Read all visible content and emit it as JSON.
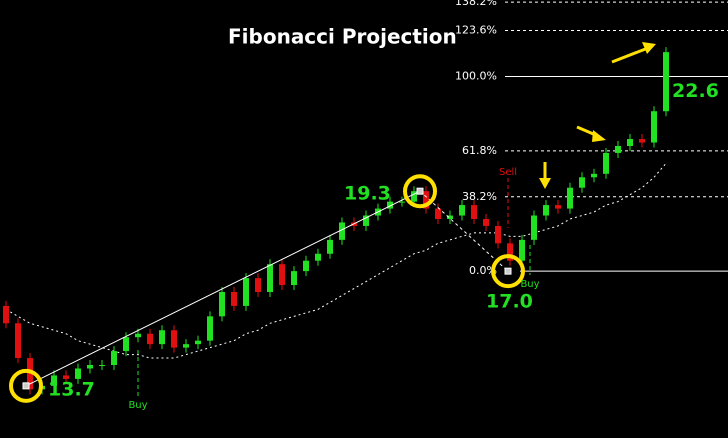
{
  "chart_data": {
    "type": "candlestick",
    "title": "Fibonacci Projection",
    "ylim": [
      12.2,
      24.8
    ],
    "open": [
      16.0,
      15.5,
      14.5,
      13.6,
      13.7,
      14.0,
      13.9,
      14.2,
      14.3,
      14.3,
      14.7,
      15.1,
      15.2,
      14.9,
      15.3,
      14.8,
      14.9,
      15.0,
      15.7,
      16.4,
      16.0,
      16.8,
      16.4,
      17.2,
      16.6,
      17.0,
      17.3,
      17.5,
      17.9,
      18.4,
      18.3,
      18.6,
      18.8,
      19.0,
      19.0,
      19.3,
      18.8,
      18.5,
      18.6,
      18.9,
      18.5,
      18.3,
      17.8,
      17.3,
      17.9,
      18.6,
      18.9,
      18.8,
      19.4,
      19.7,
      19.8,
      20.4,
      20.6,
      20.8,
      20.7,
      21.6
    ],
    "close": [
      15.5,
      14.5,
      13.6,
      13.7,
      14.0,
      13.9,
      14.2,
      14.3,
      14.3,
      14.7,
      15.1,
      15.2,
      14.9,
      15.3,
      14.8,
      14.9,
      15.0,
      15.7,
      16.4,
      16.0,
      16.8,
      16.4,
      17.2,
      16.6,
      17.0,
      17.3,
      17.5,
      17.9,
      18.4,
      18.3,
      18.6,
      18.8,
      19.0,
      19.0,
      19.3,
      18.8,
      18.5,
      18.6,
      18.9,
      18.5,
      18.3,
      17.8,
      17.3,
      17.9,
      18.6,
      18.9,
      18.8,
      19.4,
      19.7,
      19.8,
      20.4,
      20.6,
      20.8,
      20.7,
      21.6,
      23.3
    ],
    "up_color": "#22e022",
    "down_color": "#e01010",
    "moving_average": [
      15.9,
      15.7,
      15.5,
      15.4,
      15.3,
      15.2,
      15.0,
      14.9,
      14.8,
      14.7,
      14.6,
      14.6,
      14.5,
      14.5,
      14.5,
      14.6,
      14.7,
      14.8,
      14.9,
      15.0,
      15.2,
      15.3,
      15.5,
      15.6,
      15.7,
      15.8,
      15.9,
      16.1,
      16.3,
      16.5,
      16.7,
      16.9,
      17.1,
      17.3,
      17.5,
      17.6,
      17.8,
      17.9,
      18.0,
      18.1,
      18.1,
      18.1,
      18.0,
      18.0,
      18.1,
      18.2,
      18.3,
      18.5,
      18.6,
      18.7,
      18.9,
      19.0,
      19.2,
      19.4,
      19.7,
      20.1
    ],
    "points": {
      "values": [
        13.7,
        19.3,
        17.0,
        22.6
      ],
      "value_labels": [
        "13.7",
        "19.3",
        "17.0",
        "22.6"
      ]
    },
    "fib_levels": [
      {
        "value": 138.2,
        "label": "138.2%"
      },
      {
        "value": 123.6,
        "label": "123.6%"
      },
      {
        "value": 100.0,
        "label": "100.0%"
      },
      {
        "value": 61.8,
        "label": "61.8%"
      },
      {
        "value": 38.2,
        "label": "38.2%"
      },
      {
        "value": 0.0,
        "label": "0.0%"
      }
    ],
    "signals": [
      "Buy",
      "Sell",
      "Buy"
    ]
  }
}
